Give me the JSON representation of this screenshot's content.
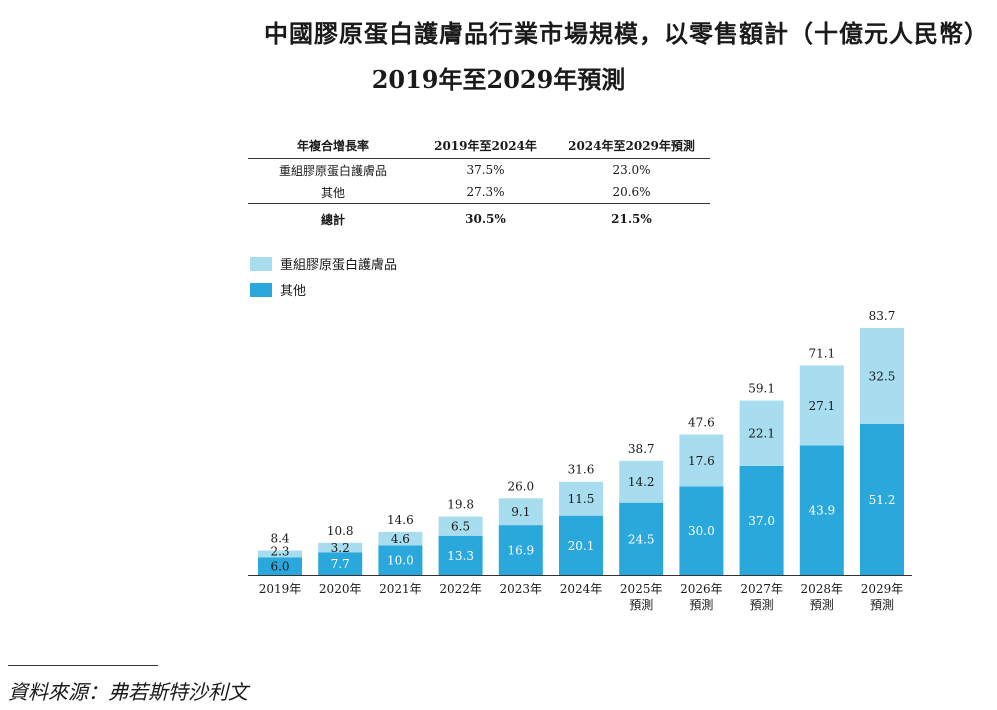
{
  "title_line1": "中國膠原蛋白護膚品行業市場規模，以零售額計（十億元人民幣）",
  "title_line2": "2019年至2029年預測",
  "cagr_table": {
    "header": [
      "年複合增長率",
      "2019年至2024年",
      "2024年至2029年預測"
    ],
    "rows": [
      [
        "重組膠原蛋白護膚品",
        "37.5%",
        "23.0%"
      ],
      [
        "其他",
        "27.3%",
        "20.6%"
      ]
    ],
    "total": [
      "總計",
      "30.5%",
      "21.5%"
    ]
  },
  "legend": [
    {
      "label": "重組膠原蛋白護膚品",
      "color": "#a8dcef"
    },
    {
      "label": "其他",
      "color": "#2aa8dc"
    }
  ],
  "chart_data": {
    "type": "bar",
    "stacked": true,
    "categories": [
      "2019年",
      "2020年",
      "2021年",
      "2022年",
      "2023年",
      "2024年",
      "2025年\n預測",
      "2026年\n預測",
      "2027年\n預測",
      "2028年\n預測",
      "2029年\n預測"
    ],
    "series": [
      {
        "name": "其他",
        "color": "#2aa8dc",
        "values": [
          6.0,
          7.7,
          10.0,
          13.3,
          16.9,
          20.1,
          24.5,
          30.0,
          37.0,
          43.9,
          51.2
        ]
      },
      {
        "name": "重組膠原蛋白護膚品",
        "color": "#a8dcef",
        "values": [
          2.3,
          3.2,
          4.6,
          6.5,
          9.1,
          11.5,
          14.2,
          17.6,
          22.1,
          27.1,
          32.5
        ]
      }
    ],
    "totals": [
      8.4,
      10.8,
      14.6,
      19.8,
      26.0,
      31.6,
      38.7,
      47.6,
      59.1,
      71.1,
      83.7
    ],
    "ylim": [
      0,
      83.7
    ],
    "title": "中國膠原蛋白護膚品行業市場規模，以零售額計（十億元人民幣）",
    "xlabel": "",
    "ylabel": ""
  },
  "source_text": "資料來源：弗若斯特沙利文"
}
